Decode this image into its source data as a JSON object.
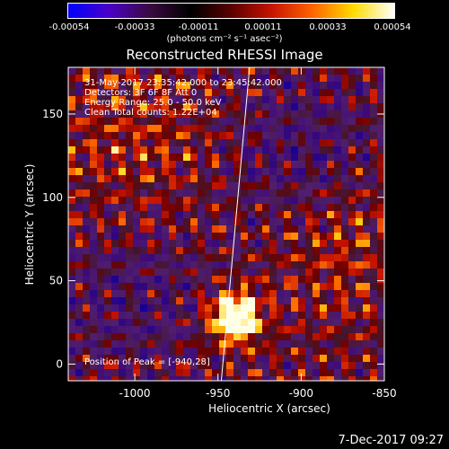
{
  "colorbar": {
    "ticks": [
      "-0.00054",
      "-0.00033",
      "-0.00011",
      "0.00011",
      "0.00033",
      "0.00054"
    ],
    "tick_values": [
      -0.00054,
      -0.00033,
      -0.00011,
      0.00011,
      0.00033,
      0.00054
    ],
    "units": "(photons cm⁻² s⁻¹ asec⁻²)",
    "colors": [
      "#0000ff",
      "#4b00c8",
      "#3a0a40",
      "#000000",
      "#5a0000",
      "#c81400",
      "#ff6400",
      "#ffdc00",
      "#ffffff"
    ]
  },
  "chart_data": {
    "type": "heatmap",
    "title": "Reconstructed RHESSI Image",
    "xlabel": "Heliocentric X (arcsec)",
    "ylabel": "Heliocentric Y (arcsec)",
    "xlim": [
      -1040,
      -850
    ],
    "ylim": [
      -10,
      178
    ],
    "xticks": [
      -1000,
      -950,
      -900,
      -850
    ],
    "xtick_labels": [
      "-1000",
      "-950",
      "-900",
      "-850"
    ],
    "yticks": [
      0,
      50,
      100,
      150
    ],
    "ytick_labels": [
      "0",
      "50",
      "100",
      "150"
    ],
    "peak": {
      "x": -940,
      "y": 28
    },
    "limb_line": [
      [
        -948,
        -10
      ],
      [
        -931,
        178
      ]
    ]
  },
  "annotations": {
    "time_range": "31-May-2017 23:35:42.000 to 23:45:42.000",
    "detectors": "Detectors: 3F 6F 8F  Att 0",
    "energy": "Energy Range: 25.0 - 50.0 keV",
    "clean": "Clean    Total counts: 1.22E+04",
    "peak": "Position of Peak = [-940,28]"
  },
  "timestamp": "7-Dec-2017 09:27"
}
